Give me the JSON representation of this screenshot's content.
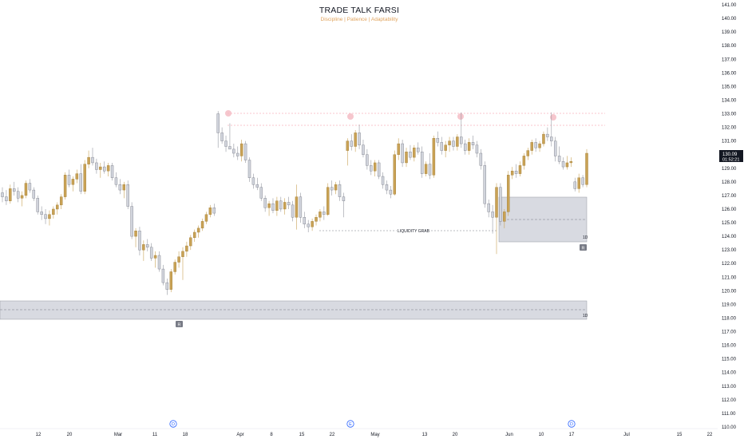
{
  "header": {
    "title": "TRADE TALK FARSI",
    "subtitle": "Discipline | Patience | Adaptability"
  },
  "colors": {
    "bull": "#c9a255",
    "bear": "#d1d4dc",
    "resistance": "#f28b9b",
    "zone_fill": "#d1d4dc",
    "event": "#2962ff"
  },
  "price_badge": {
    "value": "130.09",
    "countdown": "01:52:21"
  },
  "annotations": {
    "liquidity_grab": "LIQUIDITY GRAB",
    "zone_upper_tag": "1D",
    "zone_lower_tag": "1D",
    "zone_upper_flag": "R",
    "zone_lower_flag": "R"
  },
  "events": [
    {
      "label": "D",
      "date": "2024-03-15"
    },
    {
      "label": "E",
      "date": "2024-04-25"
    },
    {
      "label": "D",
      "date": "2024-06-14"
    }
  ],
  "chart_data": {
    "type": "candlestick",
    "title": "TRADE TALK FARSI",
    "subtitle": "Discipline | Patience | Adaptability",
    "ylim": [
      110,
      141
    ],
    "y_ticks": [
      "141.00",
      "140.00",
      "139.00",
      "138.00",
      "137.00",
      "136.00",
      "135.00",
      "134.00",
      "133.00",
      "132.00",
      "131.00",
      "130.00",
      "129.00",
      "128.00",
      "127.00",
      "126.00",
      "125.00",
      "124.00",
      "123.00",
      "122.00",
      "121.00",
      "120.00",
      "119.00",
      "118.00",
      "117.00",
      "116.00",
      "115.00",
      "114.00",
      "113.00",
      "112.00",
      "111.00",
      "110.00"
    ],
    "x_ticks": [
      "12",
      "20",
      "Mar",
      "11",
      "18",
      "Apr",
      "8",
      "15",
      "22",
      "May",
      "13",
      "20",
      "Jun",
      "10",
      "17",
      "Jul",
      "15",
      "22"
    ],
    "resistance_levels": [
      133.1,
      132.2
    ],
    "liquidity_grab_level": 124.5,
    "demand_zones": [
      {
        "top": 127.0,
        "bottom": 123.6,
        "mid": 125.3
      },
      {
        "top": 119.4,
        "bottom": 118.0,
        "mid": 118.7
      }
    ],
    "candles": [
      [
        127.2,
        127.6,
        126.5,
        126.9
      ],
      [
        126.9,
        127.4,
        126.3,
        126.6
      ],
      [
        126.6,
        127.8,
        126.4,
        127.5
      ],
      [
        127.5,
        128.0,
        127.0,
        127.3
      ],
      [
        127.3,
        127.6,
        126.5,
        126.8
      ],
      [
        126.8,
        127.3,
        126.2,
        127.0
      ],
      [
        127.0,
        128.1,
        126.8,
        127.9
      ],
      [
        127.9,
        128.2,
        127.2,
        127.4
      ],
      [
        127.4,
        127.6,
        126.6,
        126.8
      ],
      [
        126.8,
        127.0,
        125.6,
        125.8
      ],
      [
        125.8,
        126.2,
        125.2,
        125.6
      ],
      [
        125.6,
        126.0,
        124.9,
        125.3
      ],
      [
        125.3,
        125.9,
        124.8,
        125.6
      ],
      [
        125.6,
        126.2,
        125.3,
        126.0
      ],
      [
        126.0,
        126.5,
        125.6,
        126.3
      ],
      [
        126.3,
        127.1,
        126.0,
        126.9
      ],
      [
        126.9,
        128.7,
        126.7,
        128.5
      ],
      [
        128.5,
        128.9,
        127.6,
        127.8
      ],
      [
        127.8,
        128.4,
        127.3,
        128.2
      ],
      [
        128.2,
        128.9,
        127.9,
        128.6
      ],
      [
        128.6,
        129.3,
        127.1,
        127.3
      ],
      [
        127.3,
        129.6,
        127.1,
        129.3
      ],
      [
        129.3,
        130.3,
        129.0,
        129.8
      ],
      [
        129.8,
        130.5,
        129.2,
        129.4
      ],
      [
        129.4,
        129.7,
        128.6,
        128.9
      ],
      [
        128.9,
        129.4,
        128.3,
        129.1
      ],
      [
        129.1,
        129.5,
        128.6,
        128.8
      ],
      [
        128.8,
        129.4,
        128.4,
        129.2
      ],
      [
        129.2,
        129.4,
        128.1,
        128.3
      ],
      [
        128.3,
        128.7,
        127.6,
        127.8
      ],
      [
        127.8,
        128.2,
        127.1,
        127.4
      ],
      [
        127.4,
        128.0,
        126.8,
        127.8
      ],
      [
        127.8,
        128.1,
        126.0,
        126.2
      ],
      [
        126.2,
        126.5,
        123.8,
        124.0
      ],
      [
        124.0,
        124.6,
        123.2,
        124.4
      ],
      [
        124.4,
        124.7,
        122.6,
        123.0
      ],
      [
        123.0,
        123.7,
        122.2,
        123.4
      ],
      [
        123.4,
        123.8,
        122.9,
        123.2
      ],
      [
        123.2,
        123.5,
        122.2,
        122.4
      ],
      [
        122.4,
        122.9,
        121.7,
        122.6
      ],
      [
        122.6,
        122.9,
        121.4,
        121.6
      ],
      [
        121.6,
        121.9,
        120.4,
        120.6
      ],
      [
        120.6,
        120.9,
        119.7,
        120.1
      ],
      [
        120.1,
        121.6,
        119.9,
        121.4
      ],
      [
        121.4,
        122.3,
        121.2,
        122.1
      ],
      [
        122.1,
        122.9,
        121.7,
        122.5
      ],
      [
        122.5,
        123.2,
        120.8,
        122.9
      ],
      [
        122.9,
        123.6,
        122.5,
        123.3
      ],
      [
        123.3,
        124.1,
        123.0,
        123.9
      ],
      [
        123.9,
        124.5,
        123.6,
        124.3
      ],
      [
        124.3,
        124.8,
        123.9,
        124.6
      ],
      [
        124.6,
        125.3,
        124.4,
        125.1
      ],
      [
        125.1,
        125.8,
        124.9,
        125.6
      ],
      [
        125.6,
        126.3,
        125.4,
        126.1
      ],
      [
        126.1,
        126.4,
        125.5,
        125.7
      ],
      [
        133.0,
        133.2,
        130.5,
        131.6
      ],
      [
        131.6,
        132.0,
        130.8,
        131.0
      ],
      [
        131.0,
        131.4,
        130.2,
        130.6
      ],
      [
        130.6,
        132.3,
        130.5,
        130.4
      ],
      [
        130.4,
        130.8,
        129.8,
        130.1
      ],
      [
        130.1,
        130.6,
        129.6,
        129.9
      ],
      [
        129.9,
        131.1,
        129.5,
        130.8
      ],
      [
        130.8,
        131.0,
        129.4,
        129.6
      ],
      [
        129.6,
        129.8,
        128.0,
        128.3
      ],
      [
        128.3,
        128.6,
        127.5,
        127.8
      ],
      [
        127.8,
        128.3,
        127.4,
        127.6
      ],
      [
        127.6,
        127.9,
        126.6,
        126.8
      ],
      [
        126.8,
        127.0,
        125.8,
        126.1
      ],
      [
        126.1,
        126.6,
        125.5,
        126.4
      ],
      [
        126.4,
        126.8,
        125.7,
        125.9
      ],
      [
        125.9,
        126.9,
        125.5,
        126.6
      ],
      [
        126.6,
        126.9,
        125.8,
        126.0
      ],
      [
        126.0,
        126.8,
        125.6,
        126.5
      ],
      [
        126.5,
        126.9,
        126.0,
        126.3
      ],
      [
        126.3,
        126.6,
        125.1,
        125.4
      ],
      [
        125.4,
        127.8,
        124.5,
        126.9
      ],
      [
        126.9,
        127.2,
        125.0,
        125.4
      ],
      [
        125.4,
        125.8,
        124.6,
        124.9
      ],
      [
        124.9,
        125.2,
        124.3,
        124.7
      ],
      [
        124.7,
        125.3,
        124.4,
        125.1
      ],
      [
        125.1,
        125.6,
        124.8,
        125.4
      ],
      [
        125.4,
        126.0,
        125.1,
        125.8
      ],
      [
        125.8,
        126.2,
        125.2,
        125.6
      ],
      [
        125.6,
        127.9,
        125.5,
        127.6
      ],
      [
        127.6,
        128.1,
        127.0,
        127.4
      ],
      [
        127.4,
        128.0,
        127.1,
        127.8
      ],
      [
        127.8,
        128.1,
        126.6,
        126.9
      ],
      [
        126.9,
        127.2,
        125.4,
        126.6
      ],
      [
        130.3,
        131.2,
        129.2,
        131.0
      ],
      [
        131.0,
        131.5,
        130.3,
        130.6
      ],
      [
        130.6,
        131.8,
        130.2,
        131.6
      ],
      [
        131.6,
        132.2,
        130.4,
        130.7
      ],
      [
        130.7,
        131.1,
        129.8,
        130.0
      ],
      [
        130.0,
        130.4,
        128.9,
        129.2
      ],
      [
        129.2,
        129.6,
        128.5,
        128.8
      ],
      [
        128.8,
        129.6,
        128.4,
        129.4
      ],
      [
        129.4,
        129.6,
        128.2,
        128.4
      ],
      [
        128.4,
        128.7,
        127.5,
        127.8
      ],
      [
        127.8,
        128.1,
        127.1,
        127.4
      ],
      [
        127.4,
        127.7,
        126.8,
        127.1
      ],
      [
        127.1,
        130.3,
        127.0,
        130.0
      ],
      [
        130.0,
        131.2,
        129.6,
        130.8
      ],
      [
        130.8,
        131.1,
        129.1,
        129.4
      ],
      [
        129.4,
        130.5,
        129.1,
        130.2
      ],
      [
        130.2,
        130.7,
        129.6,
        129.8
      ],
      [
        129.8,
        130.7,
        129.5,
        130.5
      ],
      [
        130.5,
        130.9,
        130.0,
        130.2
      ],
      [
        130.2,
        130.6,
        128.3,
        128.6
      ],
      [
        128.6,
        129.5,
        128.4,
        129.3
      ],
      [
        129.3,
        130.1,
        128.2,
        128.5
      ],
      [
        128.5,
        131.4,
        128.3,
        131.2
      ],
      [
        131.2,
        131.7,
        130.6,
        130.9
      ],
      [
        130.9,
        131.3,
        130.0,
        130.3
      ],
      [
        130.3,
        131.0,
        129.8,
        130.7
      ],
      [
        130.7,
        131.3,
        130.2,
        131.0
      ],
      [
        131.0,
        131.3,
        130.3,
        130.6
      ],
      [
        130.6,
        131.5,
        130.3,
        131.3
      ],
      [
        131.3,
        133.1,
        130.5,
        130.8
      ],
      [
        130.8,
        131.1,
        130.0,
        130.3
      ],
      [
        130.3,
        131.2,
        130.0,
        130.9
      ],
      [
        130.9,
        131.4,
        130.4,
        130.7
      ],
      [
        130.7,
        131.0,
        129.8,
        130.1
      ],
      [
        130.1,
        130.4,
        128.9,
        129.2
      ],
      [
        129.2,
        129.5,
        126.1,
        126.4
      ],
      [
        126.4,
        126.7,
        125.4,
        125.8
      ],
      [
        125.8,
        126.3,
        124.2,
        125.4
      ],
      [
        125.4,
        127.9,
        122.7,
        127.6
      ],
      [
        127.6,
        127.9,
        124.8,
        125.1
      ],
      [
        125.1,
        126.0,
        124.6,
        125.8
      ],
      [
        125.8,
        128.8,
        125.5,
        128.5
      ],
      [
        128.5,
        129.1,
        128.2,
        128.8
      ],
      [
        128.8,
        129.3,
        128.3,
        128.6
      ],
      [
        128.6,
        129.5,
        128.4,
        129.2
      ],
      [
        129.2,
        130.1,
        128.9,
        129.9
      ],
      [
        129.9,
        130.5,
        129.6,
        130.3
      ],
      [
        130.3,
        131.1,
        130.0,
        130.9
      ],
      [
        130.9,
        131.2,
        130.2,
        130.5
      ],
      [
        130.5,
        131.0,
        130.2,
        130.8
      ],
      [
        130.8,
        131.7,
        130.6,
        131.5
      ],
      [
        131.5,
        132.0,
        131.0,
        131.3
      ],
      [
        131.3,
        133.1,
        130.6,
        131.0
      ],
      [
        131.0,
        131.3,
        129.5,
        129.9
      ],
      [
        129.9,
        130.6,
        129.3,
        129.5
      ],
      [
        129.5,
        129.8,
        128.9,
        129.1
      ],
      [
        129.1,
        129.9,
        128.9,
        129.4
      ],
      [
        129.4,
        129.8,
        129.1,
        129.5
      ],
      [
        128.0,
        128.3,
        127.3,
        127.5
      ],
      [
        127.5,
        128.6,
        127.2,
        128.3
      ],
      [
        128.3,
        128.5,
        127.6,
        127.8
      ],
      [
        127.8,
        130.4,
        127.6,
        130.1
      ]
    ]
  }
}
